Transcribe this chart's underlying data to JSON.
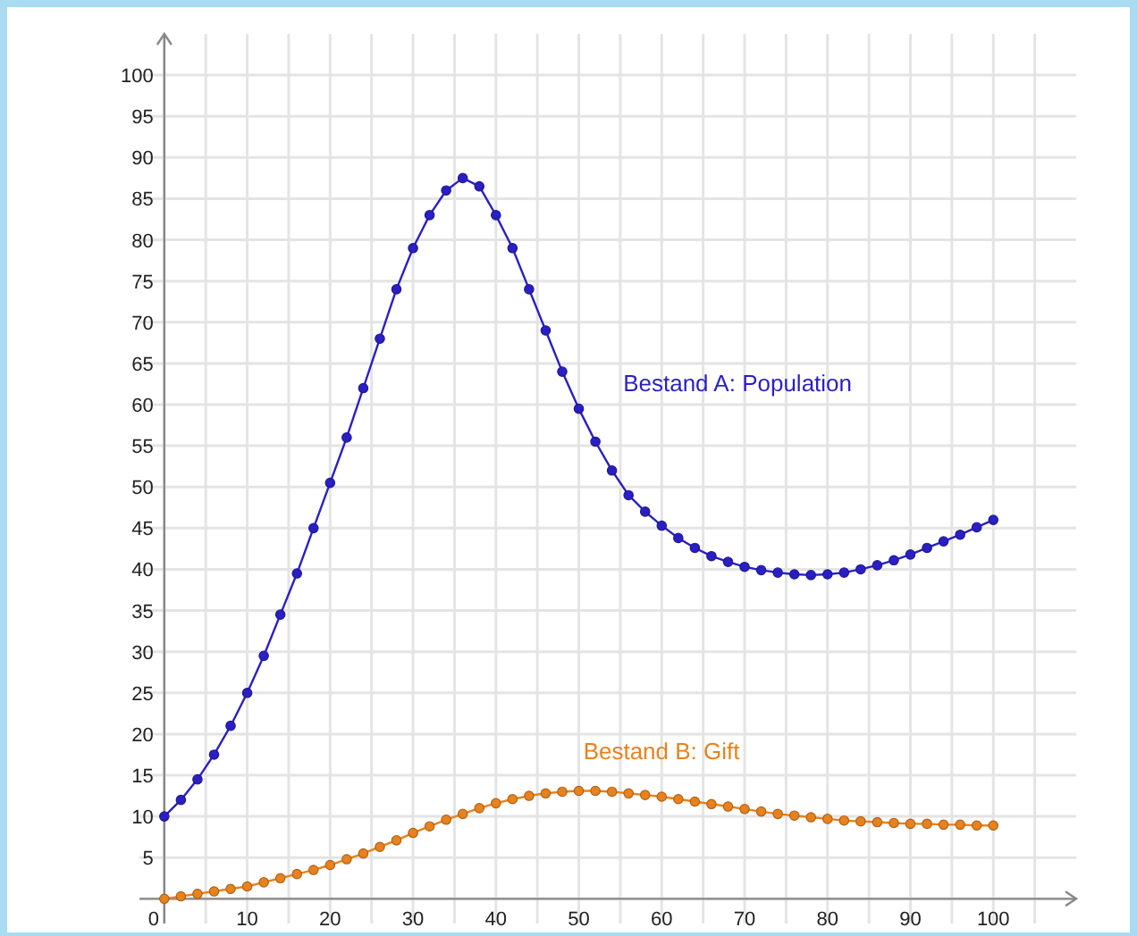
{
  "chart_data": {
    "type": "line",
    "xlim": [
      -3,
      110
    ],
    "ylim": [
      -3,
      105
    ],
    "xticks": [
      0,
      {
        "value": 5,
        "label": null
      },
      10,
      {
        "value": 15,
        "label": null
      },
      20,
      {
        "value": 25,
        "label": null
      },
      30,
      {
        "value": 35,
        "label": null
      },
      40,
      {
        "value": 45,
        "label": null
      },
      50,
      {
        "value": 55,
        "label": null
      },
      60,
      {
        "value": 65,
        "label": null
      },
      70,
      {
        "value": 75,
        "label": null
      },
      80,
      {
        "value": 85,
        "label": null
      },
      90,
      {
        "value": 95,
        "label": null
      },
      100,
      {
        "value": 105,
        "label": null
      }
    ],
    "yticks": [
      {
        "value": 0,
        "label": null
      },
      5,
      10,
      15,
      20,
      25,
      30,
      35,
      40,
      45,
      50,
      55,
      60,
      65,
      70,
      75,
      80,
      85,
      90,
      95,
      100
    ],
    "grid": true,
    "marker": "circle",
    "line_style": "solid",
    "x": [
      0,
      2,
      4,
      6,
      8,
      10,
      12,
      14,
      16,
      18,
      20,
      22,
      24,
      26,
      28,
      30,
      32,
      34,
      36,
      38,
      40,
      42,
      44,
      46,
      48,
      50,
      52,
      54,
      56,
      58,
      60,
      62,
      64,
      66,
      68,
      70,
      72,
      74,
      76,
      78,
      80,
      82,
      84,
      86,
      88,
      90,
      92,
      94,
      96,
      98,
      100
    ],
    "series": [
      {
        "name": "Bestand A: Population",
        "color": "#2a1fc4",
        "values": [
          10,
          12,
          14.5,
          17.5,
          21,
          25,
          29.5,
          34.5,
          39.5,
          45,
          50.5,
          56,
          62,
          68,
          74,
          79,
          83,
          86,
          87.5,
          86.5,
          83,
          79,
          74,
          69,
          64,
          59.5,
          55.5,
          52,
          49,
          47,
          45.3,
          43.8,
          42.6,
          41.6,
          40.9,
          40.3,
          39.9,
          39.6,
          39.4,
          39.3,
          39.4,
          39.6,
          40,
          40.5,
          41.1,
          41.8,
          42.6,
          43.4,
          44.2,
          45.1,
          46
        ]
      },
      {
        "name": "Bestand B: Gift",
        "color": "#e8821e",
        "values": [
          0,
          0.3,
          0.6,
          0.9,
          1.2,
          1.5,
          2,
          2.5,
          3,
          3.5,
          4.1,
          4.8,
          5.5,
          6.3,
          7.1,
          8,
          8.8,
          9.6,
          10.3,
          11,
          11.6,
          12.1,
          12.5,
          12.8,
          13,
          13.1,
          13.1,
          13,
          12.8,
          12.6,
          12.4,
          12.1,
          11.8,
          11.5,
          11.2,
          10.9,
          10.6,
          10.3,
          10.1,
          9.9,
          9.7,
          9.5,
          9.4,
          9.3,
          9.2,
          9.1,
          9.1,
          9,
          9,
          8.9,
          8.9
        ]
      }
    ]
  }
}
